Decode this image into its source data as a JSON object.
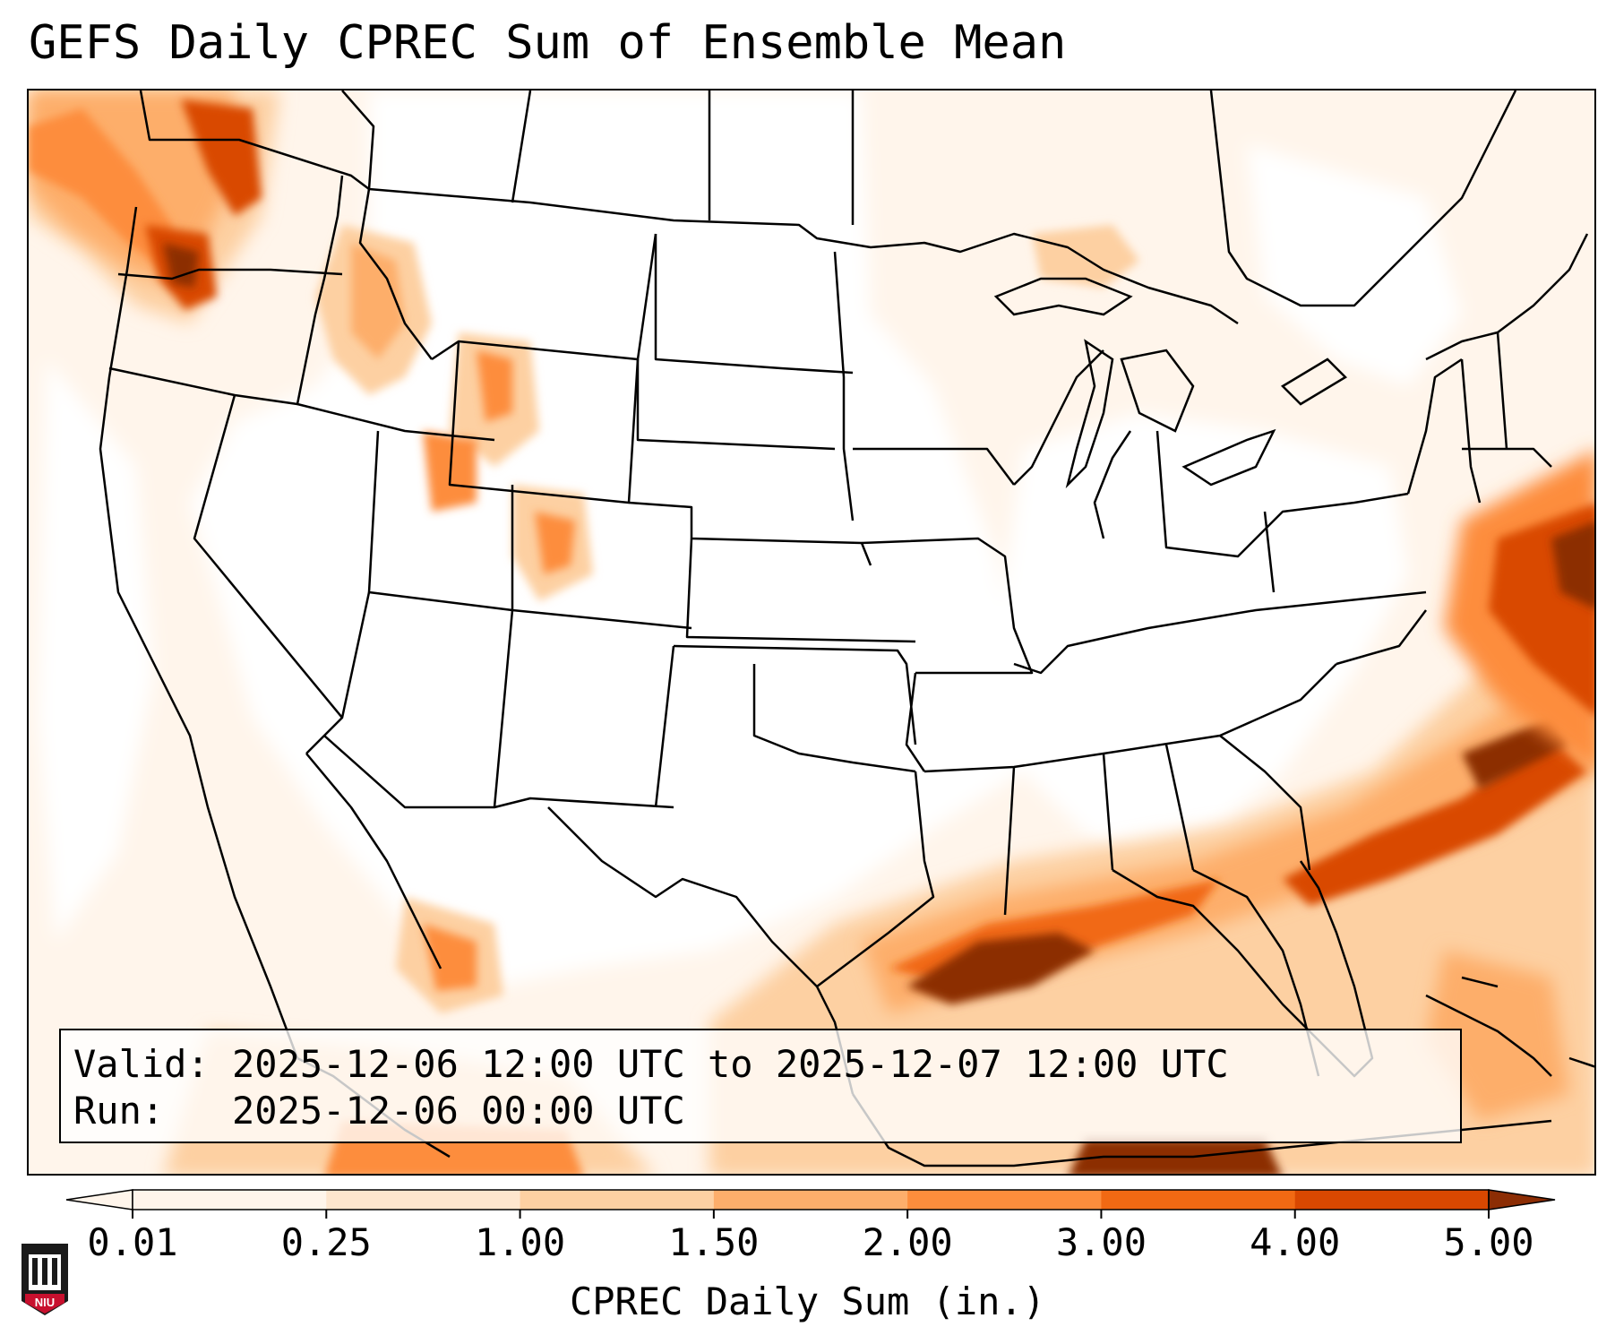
{
  "title": "GEFS Daily CPREC Sum of Ensemble Mean",
  "info": {
    "valid_label": "Valid:",
    "valid_value": "2025-12-06 12:00 UTC to 2025-12-07 12:00 UTC",
    "run_label": "Run:",
    "run_value": "2025-12-06 00:00 UTC"
  },
  "colorbar": {
    "label": "CPREC Daily Sum (in.)",
    "ticks": [
      "0.01",
      "0.25",
      "1.00",
      "1.50",
      "2.00",
      "3.00",
      "4.00",
      "5.00"
    ],
    "colors": [
      "#fff5eb",
      "#fee6ce",
      "#fdd0a2",
      "#fdae6b",
      "#fd8d3c",
      "#f16913",
      "#d94801",
      "#8c2d04"
    ],
    "extend_low": "#fff5eb",
    "extend_high": "#8c2d04"
  },
  "logo": {
    "text": "NIU",
    "colors": {
      "shield": "#c8102e",
      "dark": "#1a1a1a"
    }
  }
}
